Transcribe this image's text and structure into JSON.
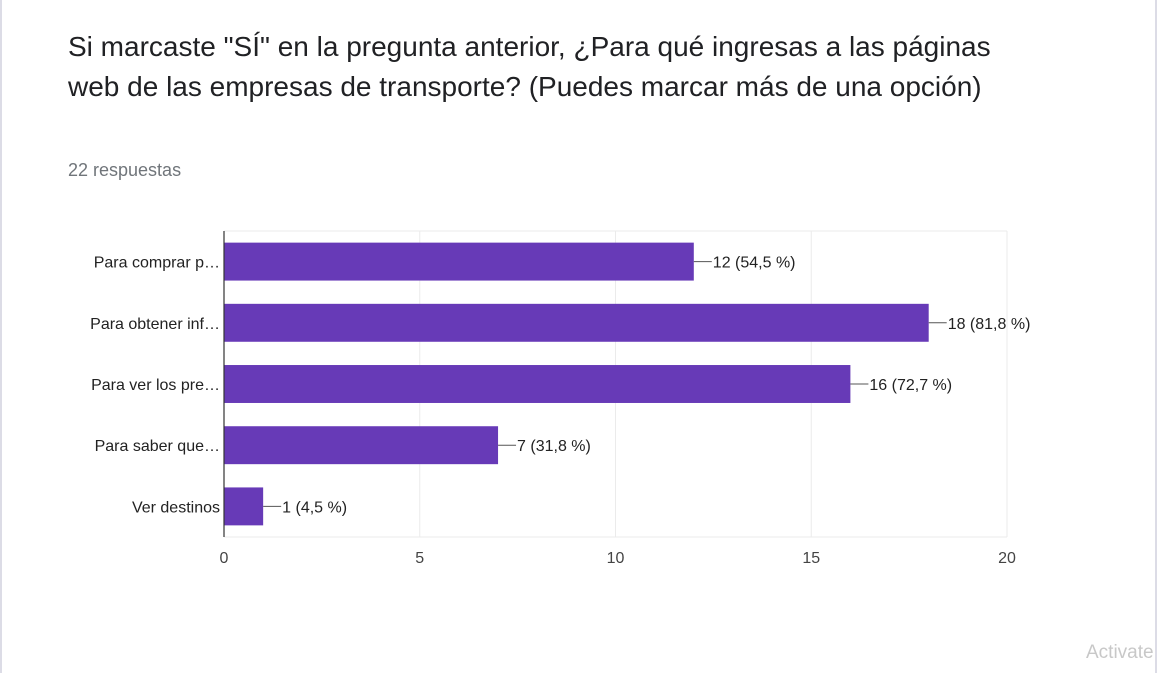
{
  "card": {
    "title": "Si marcaste \"SÍ\" en la pregunta anterior, ¿Para qué ingresas a las páginas web de las empresas de transporte? (Puedes marcar más de una opción)",
    "responses": "22 respuestas"
  },
  "chart_data": {
    "type": "bar",
    "orientation": "horizontal",
    "categories": [
      "Para comprar p…",
      "Para obtener inf…",
      "Para ver los pre…",
      "Para saber que…",
      "Ver destinos"
    ],
    "values": [
      12,
      18,
      16,
      7,
      1
    ],
    "data_labels": [
      "12 (54,5 %)",
      "18 (81,8 %)",
      "16 (72,7 %)",
      "7 (31,8 %)",
      "1 (4,5 %)"
    ],
    "xlim": [
      0,
      20
    ],
    "xticks": [
      0,
      5,
      10,
      15,
      20
    ],
    "grid": true,
    "bar_color": "#673ab7"
  },
  "watermark": "Activate"
}
